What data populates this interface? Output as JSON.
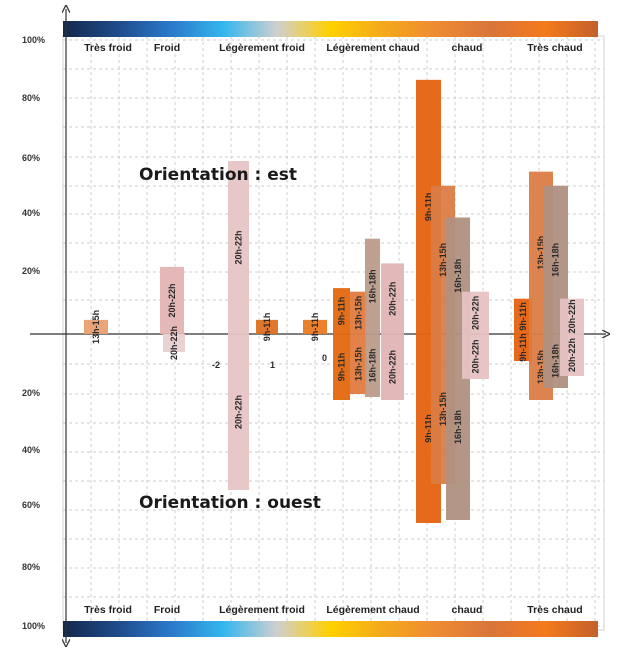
{
  "chart_data": {
    "type": "bar",
    "orientation_labels": {
      "top": "Orientation :  est",
      "bottom": "Orientation :  ouest"
    },
    "y_ticks": [
      "100%",
      "80%",
      "60%",
      "40%",
      "20%",
      "20%",
      "40%",
      "60%",
      "80%",
      "100%"
    ],
    "categories": [
      {
        "key": "tf",
        "label": "Très froid"
      },
      {
        "key": "f",
        "label": "Froid"
      },
      {
        "key": "lf",
        "label": "Légèrement froid"
      },
      {
        "key": "lc",
        "label": "Légèrement chaud"
      },
      {
        "key": "c",
        "label": "chaud"
      },
      {
        "key": "tc",
        "label": "Très chaud"
      }
    ],
    "color_scale": [
      "#14284a",
      "#1f4a8a",
      "#2a78c8",
      "#35b6ee",
      "#cfcfcf",
      "#ffd000",
      "#f4a81c",
      "#ee8a32",
      "#d8753a",
      "#f47a1c",
      "#c2602c"
    ],
    "series": [
      {
        "category": "tf",
        "orientation": "est",
        "period": "13h-15h",
        "value": 4,
        "color": "#e8a070"
      },
      {
        "category": "f",
        "orientation": "est",
        "period": "20h-22h",
        "value": 19,
        "color": "#e4b4b4"
      },
      {
        "category": "f",
        "orientation": "ouest",
        "period": "20h-22h",
        "value": 6,
        "color": "#e8d0d0"
      },
      {
        "category": "lf",
        "orientation": "est",
        "period": "20h-22h",
        "value": 49,
        "color": "#e6c4c4"
      },
      {
        "category": "lf",
        "orientation": "ouest",
        "period": "20h-22h",
        "value": 52,
        "color": "#e6c4c4"
      },
      {
        "category": "lf",
        "orientation": "est",
        "period": "9h-11h",
        "value": 4,
        "color": "#dd7022"
      },
      {
        "category": "lc",
        "orientation": "est",
        "period": "9h-11h",
        "value": 4,
        "color": "#ea7a22"
      },
      {
        "category": "lc",
        "orientation": "est",
        "period": "9h-11h",
        "value": 13,
        "color": "#e46810"
      },
      {
        "category": "lc",
        "orientation": "ouest",
        "period": "9h-11h",
        "value": 22,
        "color": "#e46810"
      },
      {
        "category": "lc",
        "orientation": "est",
        "period": "13h-15h",
        "value": 12,
        "color": "#e07b3e"
      },
      {
        "category": "lc",
        "orientation": "ouest",
        "period": "13h-15h",
        "value": 20,
        "color": "#e07b3e"
      },
      {
        "category": "lc",
        "orientation": "est",
        "period": "16h-18h",
        "value": 27,
        "color": "#bc9c8c"
      },
      {
        "category": "lc",
        "orientation": "ouest",
        "period": "16h-18h",
        "value": 21,
        "color": "#bc9c8c"
      },
      {
        "category": "lc",
        "orientation": "est",
        "period": "20h-22h",
        "value": 20,
        "color": "#e0b4b4"
      },
      {
        "category": "lc",
        "orientation": "ouest",
        "period": "20h-22h",
        "value": 22,
        "color": "#e0b4b4"
      },
      {
        "category": "c",
        "orientation": "est",
        "period": "9h-11h",
        "value": 72,
        "color": "#e46210"
      },
      {
        "category": "c",
        "orientation": "ouest",
        "period": "9h-11h",
        "value": 63,
        "color": "#e46210"
      },
      {
        "category": "c",
        "orientation": "est",
        "period": "13h-15h",
        "value": 42,
        "color": "#da7c44"
      },
      {
        "category": "c",
        "orientation": "ouest",
        "period": "13h-15h",
        "value": 50,
        "color": "#da7c44"
      },
      {
        "category": "c",
        "orientation": "est",
        "period": "16h-18h",
        "value": 33,
        "color": "#b09080"
      },
      {
        "category": "c",
        "orientation": "ouest",
        "period": "16h-18h",
        "value": 62,
        "color": "#b09080"
      },
      {
        "category": "c",
        "orientation": "est",
        "period": "20h-22h",
        "value": 12,
        "color": "#e6c2c2"
      },
      {
        "category": "c",
        "orientation": "ouest",
        "period": "20h-22h",
        "value": 15,
        "color": "#e6c2c2"
      },
      {
        "category": "tc",
        "orientation": "est",
        "period": "9h-11h",
        "value": 10,
        "color": "#e46210"
      },
      {
        "category": "tc",
        "orientation": "ouest",
        "period": "9h-11h",
        "value": 9,
        "color": "#e46210"
      },
      {
        "category": "tc",
        "orientation": "est",
        "period": "13h-15h",
        "value": 46,
        "color": "#da7c44"
      },
      {
        "category": "tc",
        "orientation": "ouest",
        "period": "13h-15h",
        "value": 22,
        "color": "#da7c44"
      },
      {
        "category": "tc",
        "orientation": "est",
        "period": "16h-18h",
        "value": 42,
        "color": "#b09080"
      },
      {
        "category": "tc",
        "orientation": "ouest",
        "period": "16h-18h",
        "value": 18,
        "color": "#b09080"
      },
      {
        "category": "tc",
        "orientation": "est",
        "period": "20h-22h",
        "value": 10,
        "color": "#e6c2c2"
      },
      {
        "category": "tc",
        "orientation": "ouest",
        "period": "20h-22h",
        "value": 14,
        "color": "#e6c2c2"
      }
    ],
    "stray_labels": [
      "-2",
      "1",
      "0"
    ],
    "grid": true,
    "xlabel": "",
    "ylabel": "",
    "ylim": [
      -100,
      100
    ]
  }
}
